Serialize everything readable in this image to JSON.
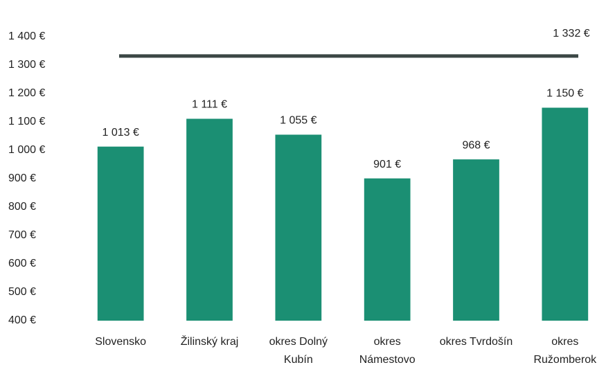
{
  "chart_data": {
    "type": "bar",
    "categories": [
      "Slovensko",
      "Žilinský kraj",
      "okres Dolný Kubín",
      "okres Námestovo",
      "okres Tvrdošín",
      "okres Ružomberok"
    ],
    "values": [
      1013,
      1111,
      1055,
      901,
      968,
      1150
    ],
    "value_labels": [
      "1 013 €",
      "1 111 €",
      "1 055 €",
      "901 €",
      "968 €",
      "1 150 €"
    ],
    "color": "#1b8f73",
    "reference_line": {
      "value": 1332,
      "label": "1 332 €",
      "color": "#3b4745"
    },
    "ylim": [
      400,
      1400
    ],
    "yticks": [
      {
        "value": 400,
        "label": "400 €"
      },
      {
        "value": 500,
        "label": "500 €"
      },
      {
        "value": 600,
        "label": "600 €"
      },
      {
        "value": 700,
        "label": "700 €"
      },
      {
        "value": 800,
        "label": "800 €"
      },
      {
        "value": 900,
        "label": "900 €"
      },
      {
        "value": 1000,
        "label": "1 000 €"
      },
      {
        "value": 1100,
        "label": "1 100 €"
      },
      {
        "value": 1200,
        "label": "1 200 €"
      },
      {
        "value": 1300,
        "label": "1 300 €"
      },
      {
        "value": 1400,
        "label": "1 400 €"
      }
    ],
    "grid": false
  }
}
